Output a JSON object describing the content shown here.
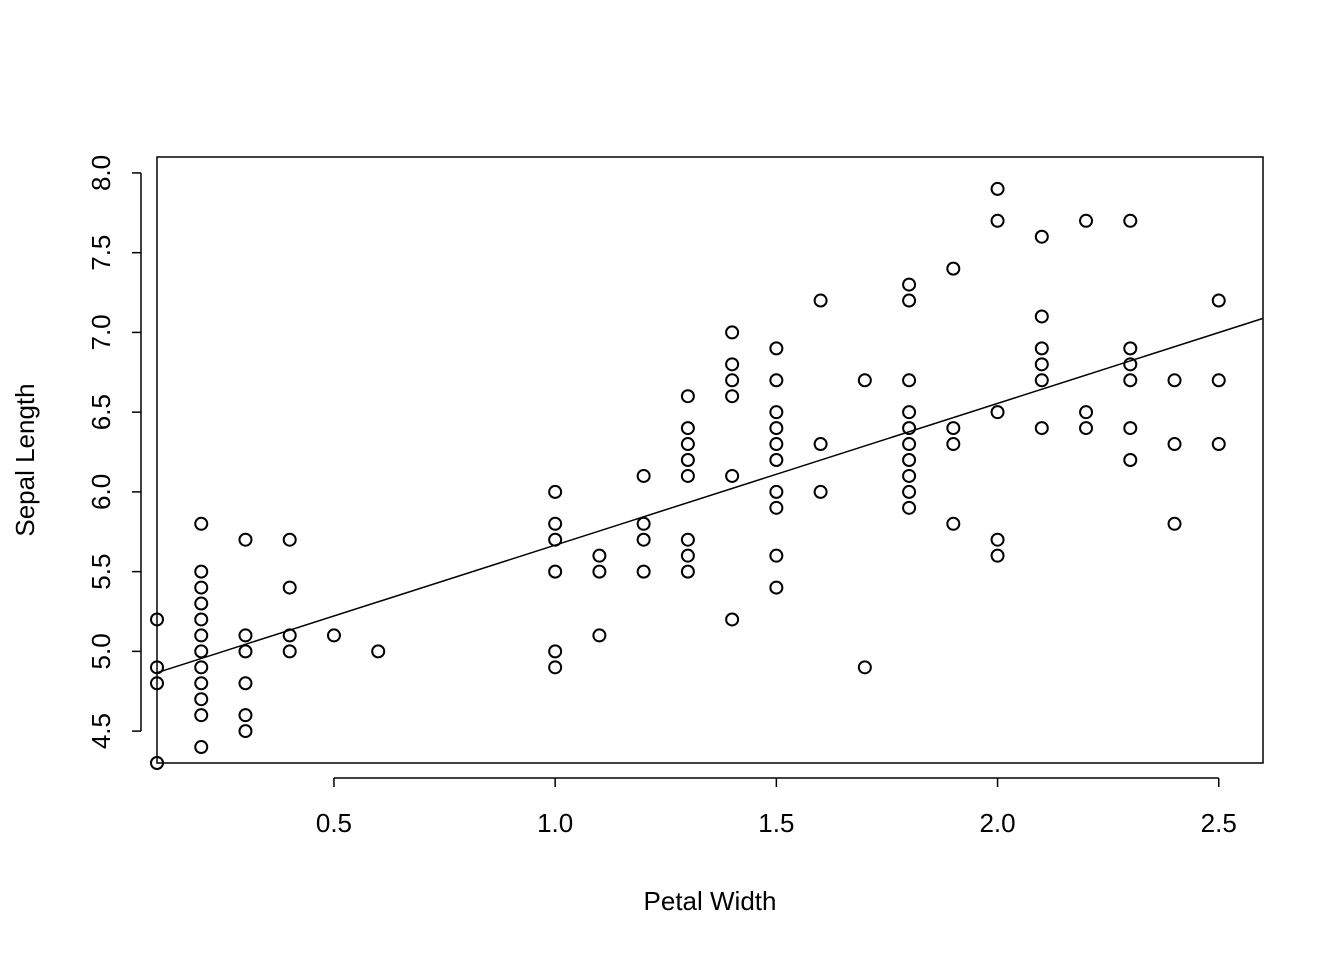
{
  "chart_data": {
    "type": "scatter",
    "title": "",
    "xlabel": "Petal Width",
    "ylabel": "Sepal Length",
    "xlim": [
      0.1,
      2.6
    ],
    "ylim": [
      4.3,
      8.1
    ],
    "x_ticks": [
      0.5,
      1.0,
      1.5,
      2.0,
      2.5
    ],
    "x_tick_labels": [
      "0.5",
      "1.0",
      "1.5",
      "2.0",
      "2.5"
    ],
    "y_ticks": [
      4.5,
      5.0,
      5.5,
      6.0,
      6.5,
      7.0,
      7.5,
      8.0
    ],
    "y_tick_labels": [
      "4.5",
      "5.0",
      "5.5",
      "6.0",
      "6.5",
      "7.0",
      "7.5",
      "8.0"
    ],
    "grid": false,
    "marker": "open-circle",
    "regression_line": {
      "intercept": 4.7776,
      "slope": 0.8886
    },
    "points": [
      [
        0.1,
        5.2
      ],
      [
        0.1,
        4.9
      ],
      [
        0.1,
        4.8
      ],
      [
        0.1,
        4.3
      ],
      [
        0.2,
        5.8
      ],
      [
        0.2,
        5.5
      ],
      [
        0.2,
        5.4
      ],
      [
        0.2,
        5.3
      ],
      [
        0.2,
        5.2
      ],
      [
        0.2,
        5.1
      ],
      [
        0.2,
        5.0
      ],
      [
        0.2,
        4.9
      ],
      [
        0.2,
        4.8
      ],
      [
        0.2,
        4.7
      ],
      [
        0.2,
        4.6
      ],
      [
        0.2,
        4.4
      ],
      [
        0.3,
        5.7
      ],
      [
        0.3,
        5.1
      ],
      [
        0.3,
        5.0
      ],
      [
        0.3,
        4.8
      ],
      [
        0.3,
        4.6
      ],
      [
        0.3,
        4.5
      ],
      [
        0.4,
        5.7
      ],
      [
        0.4,
        5.4
      ],
      [
        0.4,
        5.1
      ],
      [
        0.4,
        5.0
      ],
      [
        0.5,
        5.1
      ],
      [
        0.6,
        5.0
      ],
      [
        1.0,
        6.0
      ],
      [
        1.0,
        5.8
      ],
      [
        1.0,
        5.7
      ],
      [
        1.0,
        5.5
      ],
      [
        1.0,
        5.0
      ],
      [
        1.0,
        4.9
      ],
      [
        1.1,
        5.6
      ],
      [
        1.1,
        5.5
      ],
      [
        1.1,
        5.1
      ],
      [
        1.2,
        6.1
      ],
      [
        1.2,
        5.8
      ],
      [
        1.2,
        5.7
      ],
      [
        1.2,
        5.5
      ],
      [
        1.3,
        6.6
      ],
      [
        1.3,
        6.4
      ],
      [
        1.3,
        6.3
      ],
      [
        1.3,
        6.2
      ],
      [
        1.3,
        6.1
      ],
      [
        1.3,
        5.7
      ],
      [
        1.3,
        5.6
      ],
      [
        1.3,
        5.5
      ],
      [
        1.4,
        7.0
      ],
      [
        1.4,
        6.8
      ],
      [
        1.4,
        6.7
      ],
      [
        1.4,
        6.6
      ],
      [
        1.4,
        6.1
      ],
      [
        1.4,
        5.2
      ],
      [
        1.5,
        6.9
      ],
      [
        1.5,
        6.7
      ],
      [
        1.5,
        6.5
      ],
      [
        1.5,
        6.4
      ],
      [
        1.5,
        6.3
      ],
      [
        1.5,
        6.2
      ],
      [
        1.5,
        6.0
      ],
      [
        1.5,
        5.9
      ],
      [
        1.5,
        5.6
      ],
      [
        1.5,
        5.4
      ],
      [
        1.6,
        7.2
      ],
      [
        1.6,
        6.3
      ],
      [
        1.6,
        6.0
      ],
      [
        1.7,
        6.7
      ],
      [
        1.7,
        4.9
      ],
      [
        1.8,
        7.3
      ],
      [
        1.8,
        7.2
      ],
      [
        1.8,
        6.7
      ],
      [
        1.8,
        6.5
      ],
      [
        1.8,
        6.4
      ],
      [
        1.8,
        6.3
      ],
      [
        1.8,
        6.2
      ],
      [
        1.8,
        6.1
      ],
      [
        1.8,
        6.0
      ],
      [
        1.8,
        5.9
      ],
      [
        1.9,
        7.4
      ],
      [
        1.9,
        6.4
      ],
      [
        1.9,
        6.3
      ],
      [
        1.9,
        5.8
      ],
      [
        2.0,
        7.9
      ],
      [
        2.0,
        7.7
      ],
      [
        2.0,
        6.5
      ],
      [
        2.0,
        5.7
      ],
      [
        2.0,
        5.6
      ],
      [
        2.1,
        7.6
      ],
      [
        2.1,
        7.1
      ],
      [
        2.1,
        6.9
      ],
      [
        2.1,
        6.8
      ],
      [
        2.1,
        6.7
      ],
      [
        2.1,
        6.4
      ],
      [
        2.2,
        7.7
      ],
      [
        2.2,
        6.5
      ],
      [
        2.2,
        6.4
      ],
      [
        2.3,
        7.7
      ],
      [
        2.3,
        6.9
      ],
      [
        2.3,
        6.8
      ],
      [
        2.3,
        6.7
      ],
      [
        2.3,
        6.4
      ],
      [
        2.3,
        6.2
      ],
      [
        2.4,
        6.7
      ],
      [
        2.4,
        6.3
      ],
      [
        2.4,
        5.8
      ],
      [
        2.5,
        7.2
      ],
      [
        2.5,
        6.7
      ],
      [
        2.5,
        6.3
      ]
    ]
  }
}
